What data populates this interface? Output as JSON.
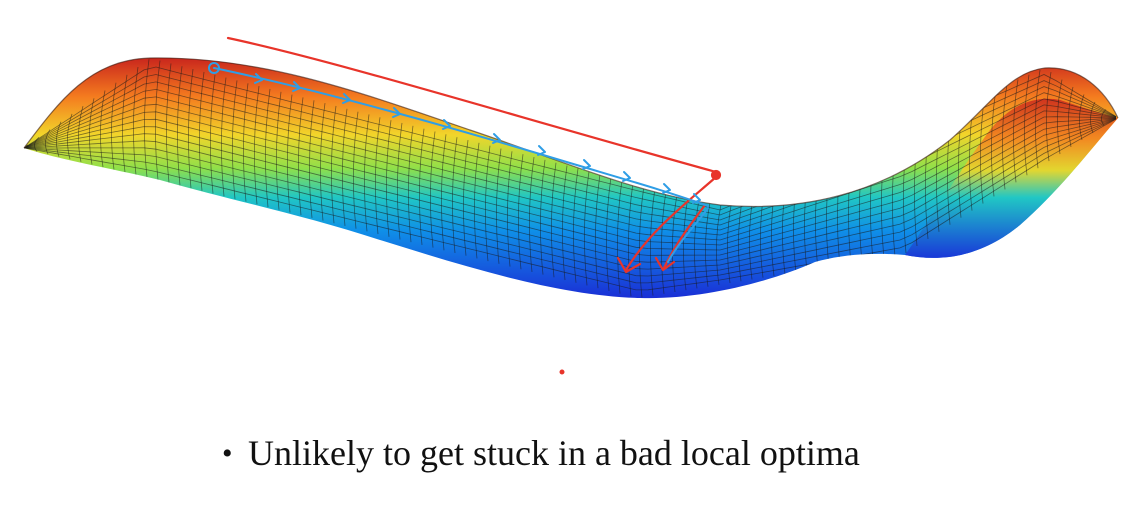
{
  "slide": {
    "bullet_marker": "•",
    "bullet_text": "Unlikely to get stuck in a bad local optima"
  },
  "figure": {
    "surface": "saddle-plateau-surface",
    "colormap": [
      "#1a2fd6",
      "#0f8fe8",
      "#21c7c4",
      "#8fe04a",
      "#f2d52a",
      "#f47b1f",
      "#c9261d"
    ],
    "mesh_color": "#1a1a1a",
    "ink_colors": {
      "red": "#e8342a",
      "blue": "#2f9ee6"
    }
  }
}
